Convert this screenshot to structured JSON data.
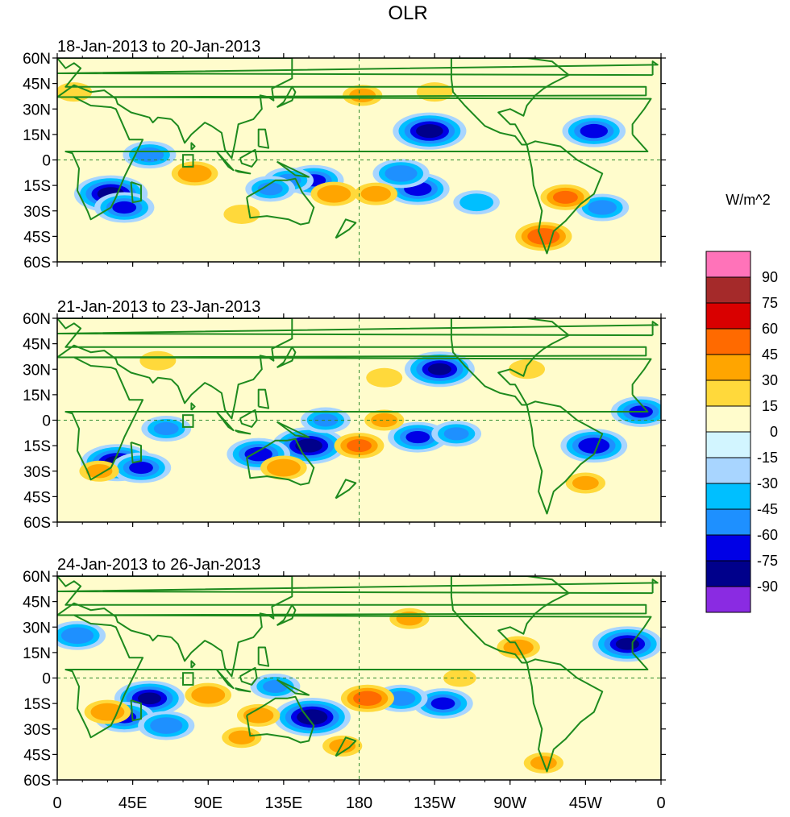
{
  "chart_data": {
    "type": "heatmap",
    "title": "OLR",
    "units": "W/m^2",
    "colorbar": {
      "levels": [
        90,
        75,
        60,
        45,
        30,
        15,
        0,
        -15,
        -30,
        -45,
        -60,
        -75,
        -90
      ],
      "labels": [
        "90",
        "75",
        "60",
        "45",
        "30",
        "15",
        "0",
        "-15",
        "-30",
        "-45",
        "-60",
        "-75",
        "-90"
      ],
      "colors": [
        "#ff73b9",
        "#a52a2a",
        "#d90000",
        "#ff6a00",
        "#ffa500",
        "#ffd93b",
        "#fffccc",
        "#d2f5ff",
        "#a8d5ff",
        "#00bfff",
        "#1e90ff",
        "#0000e6",
        "#00008b",
        "#8a2be2"
      ]
    },
    "x_ticks": [
      "0",
      "45E",
      "90E",
      "135E",
      "180",
      "135W",
      "90W",
      "45W",
      "0"
    ],
    "y_ticks": [
      "60N",
      "45N",
      "30N",
      "15N",
      "0",
      "15S",
      "30S",
      "45S",
      "60S"
    ],
    "xlim": [
      0,
      360
    ],
    "ylim": [
      -60,
      60
    ],
    "panels": [
      {
        "title": "18-Jan-2013 to 20-Jan-2013",
        "anomalies": [
          {
            "lon": 222,
            "lat": 17,
            "value": -80
          },
          {
            "lon": 215,
            "lat": -17,
            "value": -65
          },
          {
            "lon": 205,
            "lat": -8,
            "value": -55
          },
          {
            "lon": 153,
            "lat": -12,
            "value": -60
          },
          {
            "lon": 138,
            "lat": -12,
            "value": -45
          },
          {
            "lon": 127,
            "lat": -17,
            "value": -45
          },
          {
            "lon": 32,
            "lat": -20,
            "value": -80
          },
          {
            "lon": 40,
            "lat": -28,
            "value": -60
          },
          {
            "lon": 55,
            "lat": 3,
            "value": -50
          },
          {
            "lon": 320,
            "lat": 17,
            "value": -65
          },
          {
            "lon": 325,
            "lat": -28,
            "value": -50
          },
          {
            "lon": 250,
            "lat": -25,
            "value": -40
          },
          {
            "lon": 165,
            "lat": -20,
            "value": 40
          },
          {
            "lon": 190,
            "lat": -20,
            "value": 35
          },
          {
            "lon": 82,
            "lat": -8,
            "value": 40
          },
          {
            "lon": 303,
            "lat": -22,
            "value": 45
          },
          {
            "lon": 290,
            "lat": -45,
            "value": 55
          },
          {
            "lon": 182,
            "lat": 38,
            "value": 30
          },
          {
            "lon": 110,
            "lat": -32,
            "value": 25
          },
          {
            "lon": 225,
            "lat": 40,
            "value": 25
          },
          {
            "lon": 10,
            "lat": 40,
            "value": 25
          }
        ]
      },
      {
        "title": "21-Jan-2013 to 23-Jan-2013",
        "anomalies": [
          {
            "lon": 228,
            "lat": 30,
            "value": -75
          },
          {
            "lon": 150,
            "lat": -15,
            "value": -80
          },
          {
            "lon": 120,
            "lat": -20,
            "value": -65
          },
          {
            "lon": 36,
            "lat": -25,
            "value": -80
          },
          {
            "lon": 50,
            "lat": -28,
            "value": -60
          },
          {
            "lon": 215,
            "lat": -10,
            "value": -60
          },
          {
            "lon": 238,
            "lat": -8,
            "value": -45
          },
          {
            "lon": 320,
            "lat": -15,
            "value": -70
          },
          {
            "lon": 348,
            "lat": 5,
            "value": -60
          },
          {
            "lon": 160,
            "lat": 0,
            "value": -45
          },
          {
            "lon": 65,
            "lat": -5,
            "value": -45
          },
          {
            "lon": 180,
            "lat": -15,
            "value": 45
          },
          {
            "lon": 135,
            "lat": -28,
            "value": 40
          },
          {
            "lon": 195,
            "lat": 0,
            "value": 30
          },
          {
            "lon": 315,
            "lat": -37,
            "value": 30
          },
          {
            "lon": 280,
            "lat": 30,
            "value": 25
          },
          {
            "lon": 25,
            "lat": -30,
            "value": 30
          },
          {
            "lon": 60,
            "lat": 35,
            "value": 25
          },
          {
            "lon": 195,
            "lat": 25,
            "value": 25
          }
        ]
      },
      {
        "title": "24-Jan-2013 to 26-Jan-2013",
        "anomalies": [
          {
            "lon": 152,
            "lat": -23,
            "value": -85
          },
          {
            "lon": 55,
            "lat": -12,
            "value": -75
          },
          {
            "lon": 40,
            "lat": -23,
            "value": -60
          },
          {
            "lon": 65,
            "lat": -28,
            "value": -55
          },
          {
            "lon": 230,
            "lat": -15,
            "value": -60
          },
          {
            "lon": 205,
            "lat": -12,
            "value": -50
          },
          {
            "lon": 340,
            "lat": 20,
            "value": -75
          },
          {
            "lon": 12,
            "lat": 25,
            "value": -55
          },
          {
            "lon": 130,
            "lat": -5,
            "value": -45
          },
          {
            "lon": 185,
            "lat": -12,
            "value": 50
          },
          {
            "lon": 90,
            "lat": -10,
            "value": 40
          },
          {
            "lon": 120,
            "lat": -22,
            "value": 35
          },
          {
            "lon": 110,
            "lat": -35,
            "value": 30
          },
          {
            "lon": 210,
            "lat": 35,
            "value": 30
          },
          {
            "lon": 275,
            "lat": 18,
            "value": 35
          },
          {
            "lon": 30,
            "lat": -20,
            "value": 40
          },
          {
            "lon": 170,
            "lat": -40,
            "value": 30
          },
          {
            "lon": 240,
            "lat": 0,
            "value": 20
          },
          {
            "lon": 290,
            "lat": -50,
            "value": 30
          }
        ]
      }
    ]
  }
}
